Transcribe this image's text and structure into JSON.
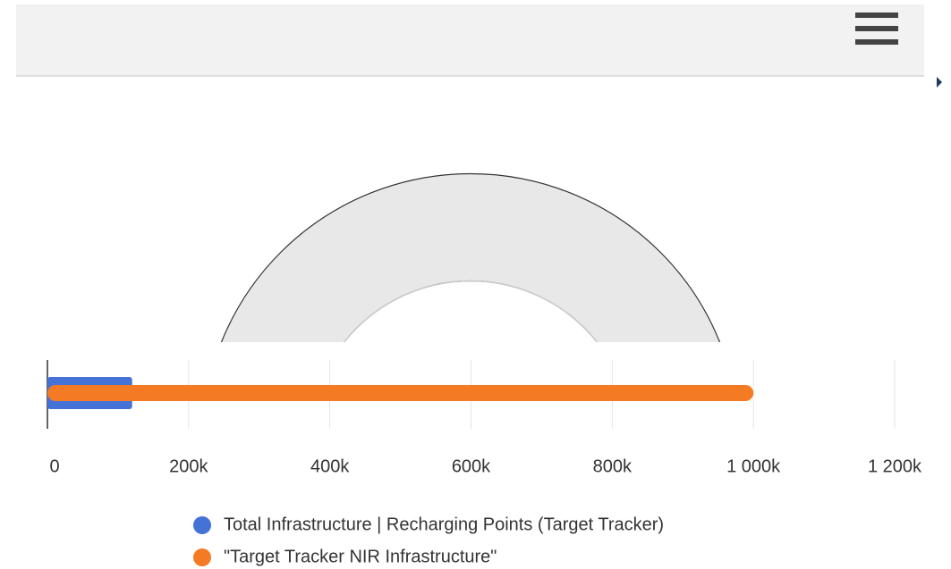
{
  "chart_data": {
    "type": "bar",
    "orientation": "horizontal",
    "series": [
      {
        "name": "Total Infrastructure | Recharging Points (Target Tracker)",
        "color": "#4472d6",
        "values": [
          120000
        ]
      },
      {
        "name": "\"Target Tracker NIR Infrastructure\"",
        "color": "#f57a24",
        "values": [
          1000000
        ]
      }
    ],
    "xlim": [
      0,
      1200000
    ],
    "xticks": [
      0,
      {
        "value": 200000,
        "label": "200k"
      },
      {
        "value": 400000,
        "label": "400k"
      },
      {
        "value": 600000,
        "label": "600k"
      },
      {
        "value": 800000,
        "label": "800k"
      },
      {
        "value": 1000000,
        "label": "1 000k"
      },
      {
        "value": 1200000,
        "label": "1 200k"
      }
    ],
    "grid": true,
    "legend": "bottom"
  }
}
